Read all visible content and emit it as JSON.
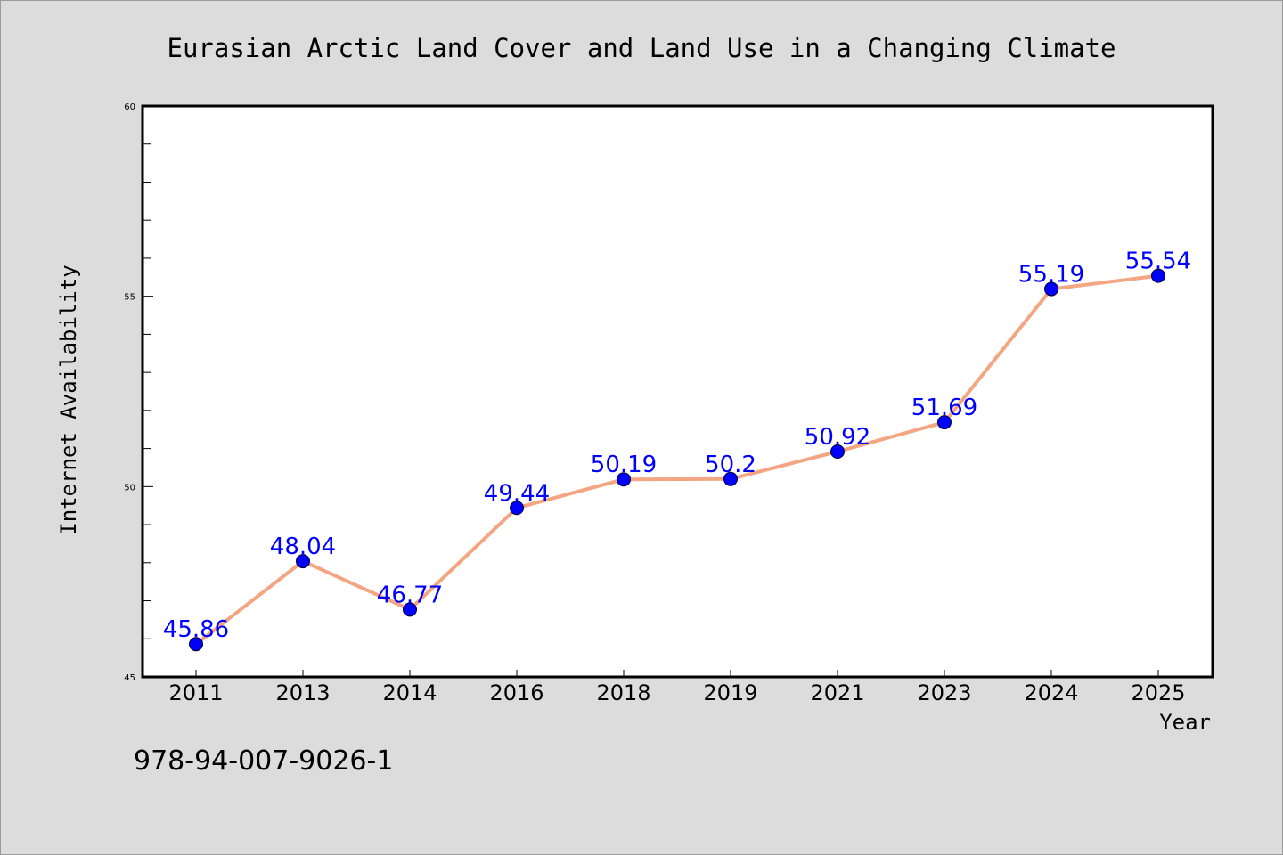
{
  "chart_data": {
    "type": "line",
    "title": "Eurasian Arctic Land Cover and Land Use in a Changing Climate",
    "xlabel": "Year",
    "ylabel": "Internet Availability",
    "categories": [
      "2011",
      "2013",
      "2014",
      "2016",
      "2018",
      "2019",
      "2021",
      "2023",
      "2024",
      "2025"
    ],
    "series": [
      {
        "values": [
          45.86,
          48.04,
          46.77,
          49.44,
          50.19,
          50.2,
          50.92,
          51.69,
          55.19,
          55.54
        ],
        "data_labels": [
          "45.86",
          "48.04",
          "46.77",
          "49.44",
          "50.19",
          "50.2",
          "50.92",
          "51.69",
          "55.19",
          "55.54"
        ]
      }
    ],
    "ylim": [
      45,
      60
    ],
    "yticks": [
      "45",
      "50",
      "55",
      "60"
    ],
    "grid": false,
    "line_color": "#f4a582",
    "marker_color": "#0000ff",
    "label_color": "#0000ff"
  },
  "footer": {
    "isbn": "978-94-007-9026-1"
  }
}
